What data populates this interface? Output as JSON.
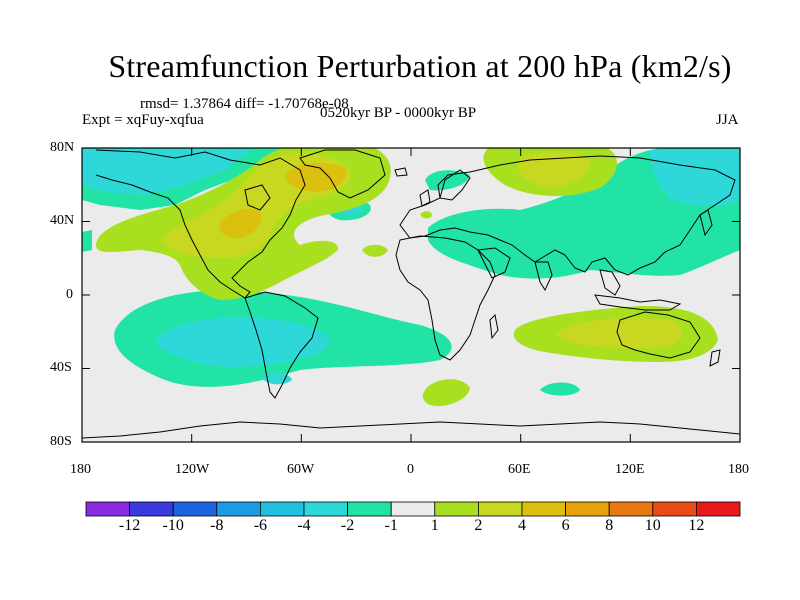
{
  "title": "Streamfunction Perturbation at 200 hPa (km2/s)",
  "stats": "rmsd= 1.37864 diff= -1.70768e-08",
  "experiment": "Expt = xqFuy-xqfua",
  "period": "0520kyr BP - 0000kyr BP",
  "season": "JJA",
  "lat_labels": [
    "80N",
    "40N",
    "0",
    "40S",
    "80S"
  ],
  "lon_labels": [
    "180",
    "120W",
    "60W",
    "0",
    "60E",
    "120E",
    "180"
  ],
  "colorbar": {
    "labels": [
      "-12",
      "-10",
      "-8",
      "-6",
      "-4",
      "-2",
      "-1",
      "1",
      "2",
      "4",
      "6",
      "8",
      "10",
      "12"
    ],
    "colors": [
      "#8a2be2",
      "#3a3adf",
      "#1f64df",
      "#1a9be6",
      "#22c0e0",
      "#2ed8d8",
      "#22e3a6",
      "#ebebeb",
      "#a8e020",
      "#c8d820",
      "#dcc010",
      "#e8a20e",
      "#e87812",
      "#e84a18",
      "#e81a1a"
    ]
  },
  "map_background": "#ebebeb"
}
